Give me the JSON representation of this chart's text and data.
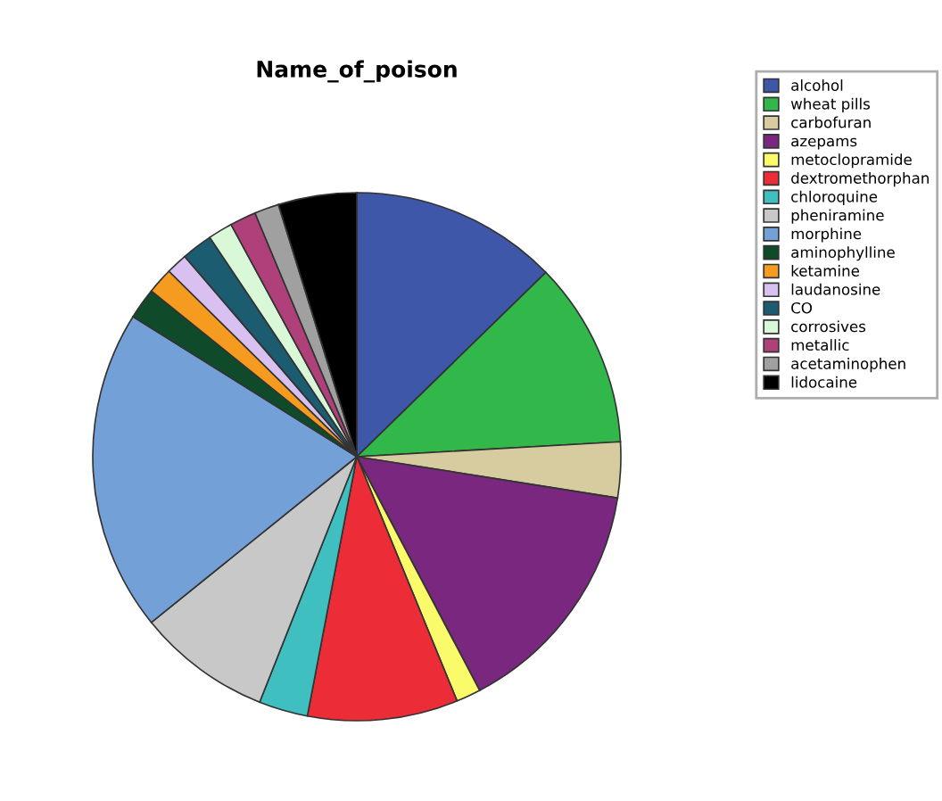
{
  "chart_data": {
    "type": "pie",
    "title": "Name_of_poison",
    "categories": [
      "alcohol",
      "wheat pills",
      "carbofuran",
      "azepams",
      "metoclopramide",
      "dextromethorphan",
      "chloroquine",
      "pheniramine",
      "morphine",
      "aminophylline",
      "ketamine",
      "laudanosine",
      "CO",
      "corrosives",
      "metallic",
      "acetaminophen",
      "lidocaine"
    ],
    "values": [
      12.7,
      11.4,
      3.4,
      14.8,
      1.5,
      9.2,
      3.0,
      8.2,
      19.7,
      1.9,
      1.6,
      1.3,
      1.9,
      1.5,
      1.6,
      1.5,
      4.8
    ],
    "colors": [
      "#3f57a8",
      "#32b84a",
      "#d7cc9f",
      "#7a2780",
      "#fafa6a",
      "#ec2d38",
      "#3fbfbf",
      "#c8c8c8",
      "#74a0d8",
      "#0f4a2a",
      "#f59b1f",
      "#d8c0f0",
      "#1b5c70",
      "#d8f8d8",
      "#b0407a",
      "#a0a0a0",
      "#000000"
    ],
    "legend": "right"
  }
}
